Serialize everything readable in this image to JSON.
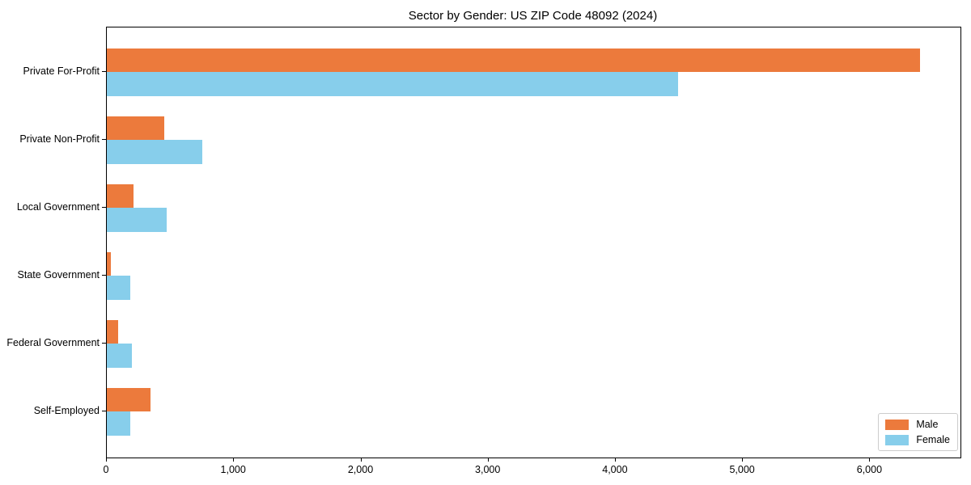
{
  "chart_data": {
    "type": "bar",
    "orientation": "horizontal",
    "title": "Sector by Gender: US ZIP Code 48092 (2024)",
    "categories": [
      "Private For-Profit",
      "Private Non-Profit",
      "Local Government",
      "State Government",
      "Federal Government",
      "Self-Employed"
    ],
    "series": [
      {
        "name": "Male",
        "color": "#EC7A3C",
        "values": [
          6390,
          450,
          210,
          30,
          90,
          340
        ]
      },
      {
        "name": "Female",
        "color": "#87CEEB",
        "values": [
          4490,
          750,
          470,
          185,
          200,
          185
        ]
      }
    ],
    "xlabel": "",
    "ylabel": "",
    "xlim": [
      0,
      6710
    ],
    "x_ticks": [
      0,
      1000,
      2000,
      3000,
      4000,
      5000,
      6000
    ],
    "x_tick_labels": [
      "0",
      "1,000",
      "2,000",
      "3,000",
      "4,000",
      "5,000",
      "6,000"
    ],
    "legend": {
      "position": "lower right",
      "entries": [
        "Male",
        "Female"
      ]
    },
    "grid": false,
    "background_color": "#ffffff",
    "text_color": "#000000"
  }
}
